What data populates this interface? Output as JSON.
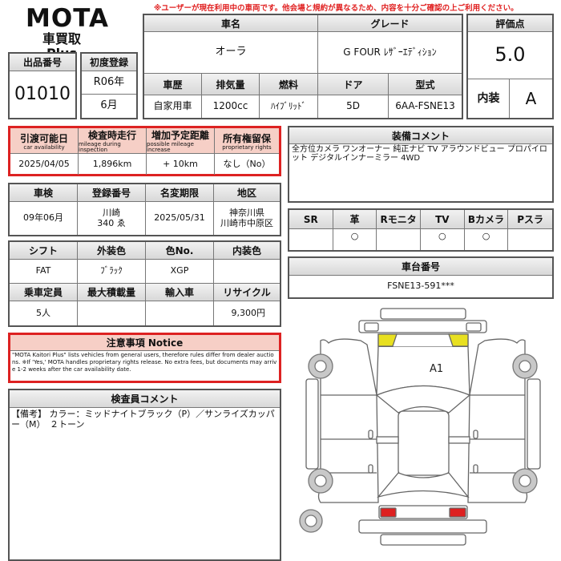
{
  "logo": {
    "brand": "MOTA",
    "sub": "車買取 Plus"
  },
  "warning": "※ユーザーが現在利用中の車両です。他会場と規約が異なるため、内容を十分ご確認の上ご利用ください。",
  "lot": {
    "label": "出品番号",
    "value": "01010"
  },
  "first_reg": {
    "label": "初度登録",
    "year": "R06年",
    "month": "6月"
  },
  "vehicle": {
    "name_label": "車名",
    "name": "オーラ",
    "grade_label": "グレード",
    "grade": "G FOUR ﾚｻﾞｰｴﾃﾞｨｼｮﾝ",
    "headers": [
      "車歴",
      "排気量",
      "燃料",
      "ドア",
      "型式"
    ],
    "values": [
      "自家用車",
      "1200cc",
      "ﾊｲﾌﾞﾘｯﾄﾞ",
      "5D",
      "6AA-FSNE13"
    ]
  },
  "score": {
    "label": "評価点",
    "value": "5.0",
    "interior_label": "内装",
    "interior": "A"
  },
  "availability": {
    "headers": [
      {
        "jp": "引渡可能日",
        "en": "car availability"
      },
      {
        "jp": "検査時走行",
        "en": "mileage during inspection"
      },
      {
        "jp": "増加予定距離",
        "en": "possible mileage increase"
      },
      {
        "jp": "所有権留保",
        "en": "proprietary rights"
      }
    ],
    "values": [
      "2025/04/05",
      "1,896km",
      "+ 10km",
      "なし（No）"
    ]
  },
  "inspection": {
    "headers": [
      "車検",
      "登録番号",
      "名変期限",
      "地区"
    ],
    "values": [
      "09年06月",
      "川崎\n340 ゑ",
      "2025/05/31",
      "神奈川県\n川崎市中原区"
    ]
  },
  "spec1": {
    "headers": [
      "シフト",
      "外装色",
      "色No.",
      "内装色"
    ],
    "values": [
      "FAT",
      "ﾌﾞﾗｯｸ",
      "XGP",
      ""
    ]
  },
  "spec2": {
    "headers": [
      "乗車定員",
      "最大積載量",
      "輸入車",
      "リサイクル"
    ],
    "values": [
      "5人",
      "",
      "",
      "9,300円"
    ]
  },
  "notice": {
    "title": "注意事項 Notice",
    "text": "\"MOTA Kaitori Plus\" lists vehicles from general users, therefore rules differ from dealer auctions. ※If 'Yes,' MOTA handles proprietary rights release. No extra fees, but documents may arrive 1-2 weeks after the car availability date."
  },
  "inspector": {
    "title": "検査員コメント",
    "text": "【備考】 カラー：ミッドナイトブラック（P）／サンライズカッパー（M）　２トーン"
  },
  "equipment": {
    "title": "装備コメント",
    "text": "全方位カメラ ワンオーナー 純正ナビ TV アラウンドビュー プロパイロット デジタルインナーミラー 4WD"
  },
  "options": {
    "headers": [
      "SR",
      "革",
      "Rモニタ",
      "TV",
      "Bカメラ",
      "Pスラ"
    ],
    "values": [
      "",
      "○",
      "",
      "○",
      "○",
      ""
    ]
  },
  "chassis": {
    "label": "車台番号",
    "value": "FSNE13-591***"
  },
  "diagram": {
    "mark": "A1",
    "colors": {
      "yellow": "#e8e020",
      "red": "#dd2020"
    }
  }
}
